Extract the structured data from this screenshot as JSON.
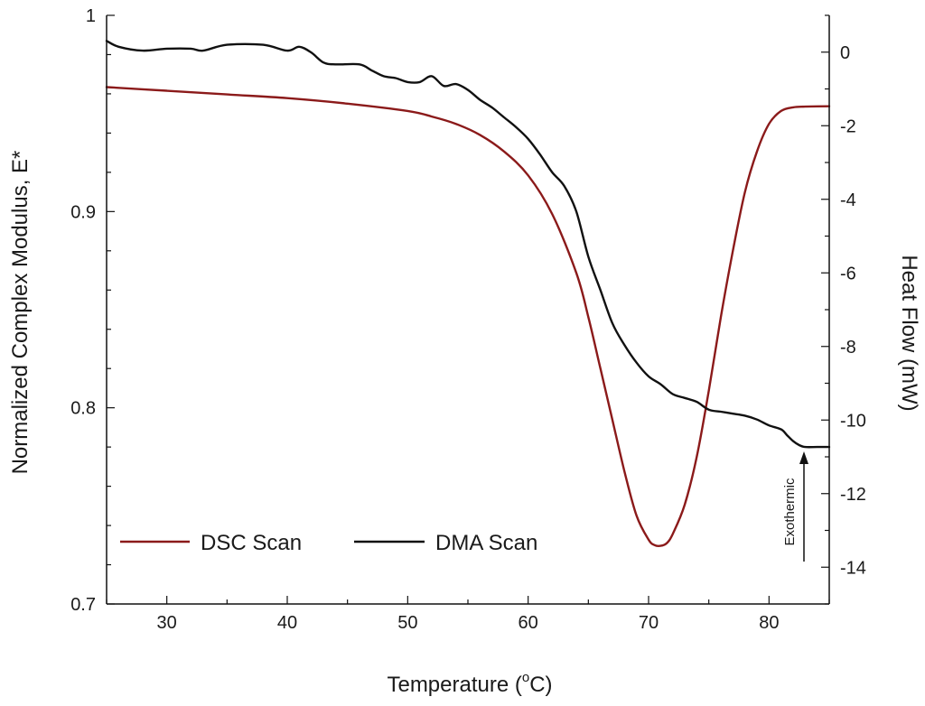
{
  "chart_data": {
    "type": "line",
    "title": "",
    "xlabel": "Temperature (",
    "xlabel_sup": "o",
    "xlabel_unit": "C)",
    "ylabel": "Normalized Complex Modulus, E*",
    "y2label": "Heat Flow (mW)",
    "xlim": [
      25,
      85
    ],
    "ylim": [
      0.7,
      1.0
    ],
    "y2lim": [
      -15,
      1
    ],
    "x_ticks": [
      "30",
      "40",
      "50",
      "60",
      "70",
      "80"
    ],
    "y_ticks": [
      "0.7",
      "0.8",
      "0.9",
      "1"
    ],
    "y2_ticks": [
      "0",
      "-2",
      "-4",
      "-6",
      "-8",
      "-10",
      "-12",
      "-14"
    ],
    "grid": false,
    "legend_position": "bottom-left",
    "annotation": "Exothermic",
    "series": [
      {
        "name": "DSC Scan",
        "axis": "right",
        "color": "#8b1a1a",
        "x": [
          25,
          30,
          35,
          40,
          45,
          50,
          52,
          54,
          56,
          58,
          60,
          62,
          64,
          65,
          66,
          67,
          68,
          69,
          70,
          70.5,
          71,
          71.5,
          72,
          73,
          74,
          75,
          76,
          77,
          78,
          79,
          80,
          81,
          82,
          83,
          85
        ],
        "y": [
          -0.95,
          -1.05,
          -1.15,
          -1.25,
          -1.4,
          -1.6,
          -1.75,
          -1.95,
          -2.25,
          -2.7,
          -3.35,
          -4.4,
          -6.0,
          -7.2,
          -8.6,
          -10.0,
          -11.4,
          -12.6,
          -13.25,
          -13.4,
          -13.42,
          -13.35,
          -13.1,
          -12.3,
          -11.0,
          -9.2,
          -7.2,
          -5.4,
          -3.8,
          -2.7,
          -1.95,
          -1.6,
          -1.5,
          -1.48,
          -1.47
        ]
      },
      {
        "name": "DMA Scan",
        "axis": "left",
        "color": "#111111",
        "x": [
          25,
          26,
          28,
          30,
          32,
          33,
          35,
          38,
          40,
          41,
          42,
          43,
          44,
          46,
          47,
          48,
          49,
          50,
          51,
          52,
          53,
          54,
          55,
          56,
          57,
          58,
          59,
          60,
          61,
          62,
          63,
          64,
          65,
          66,
          67,
          68,
          69,
          70,
          71,
          72,
          73,
          74,
          75,
          76,
          77,
          78,
          79,
          80,
          81,
          81.5,
          82,
          82.5,
          83,
          84,
          85
        ],
        "y": [
          0.987,
          0.984,
          0.982,
          0.983,
          0.983,
          0.982,
          0.985,
          0.985,
          0.982,
          0.984,
          0.981,
          0.976,
          0.975,
          0.975,
          0.972,
          0.969,
          0.968,
          0.966,
          0.966,
          0.969,
          0.964,
          0.965,
          0.962,
          0.957,
          0.953,
          0.948,
          0.943,
          0.937,
          0.929,
          0.92,
          0.913,
          0.9,
          0.877,
          0.86,
          0.843,
          0.832,
          0.823,
          0.816,
          0.812,
          0.807,
          0.805,
          0.803,
          0.799,
          0.798,
          0.797,
          0.796,
          0.794,
          0.791,
          0.789,
          0.786,
          0.783,
          0.781,
          0.78,
          0.78,
          0.78
        ]
      }
    ]
  }
}
